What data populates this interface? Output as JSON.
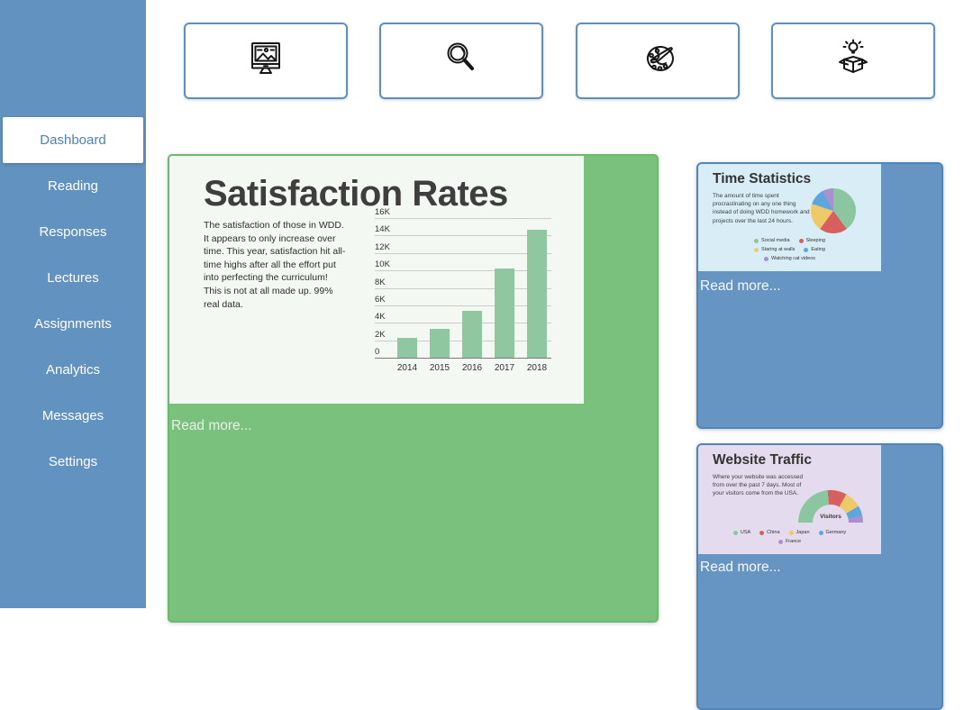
{
  "sidebar": {
    "items": [
      {
        "label": "Dashboard",
        "active": true
      },
      {
        "label": "Reading",
        "active": false
      },
      {
        "label": "Responses",
        "active": false
      },
      {
        "label": "Lectures",
        "active": false
      },
      {
        "label": "Assignments",
        "active": false
      },
      {
        "label": "Analytics",
        "active": false
      },
      {
        "label": "Messages",
        "active": false
      },
      {
        "label": "Settings",
        "active": false
      }
    ]
  },
  "top_cards": [
    {
      "icon": "monitor-image-icon"
    },
    {
      "icon": "search-icon"
    },
    {
      "icon": "palette-brush-icon"
    },
    {
      "icon": "idea-box-icon"
    }
  ],
  "satisfaction_card": {
    "title": "Satisfaction Rates",
    "description": "The satisfaction of those in WDD. It appears to only increase over time. This year, satisfaction hit all-time highs after all the effort put into perfecting the curriculum! This is not at all made up. 99% real data.",
    "read_more": "Read more..."
  },
  "time_card": {
    "title": "Time Statistics",
    "description": "The amount of time spent procrastinating on any one thing instead of doing WDD homework and projects over the last 24 hours.",
    "read_more": "Read more..."
  },
  "traffic_card": {
    "title": "Website Traffic",
    "description": "Where your website was accessed from over the past 7 days. Most of your visitors come from the USA.",
    "center_label": "Visitors",
    "read_more": "Read more..."
  },
  "chart_data": [
    {
      "type": "bar",
      "title": "Satisfaction Rates",
      "categories": [
        "2014",
        "2015",
        "2016",
        "2017",
        "2018"
      ],
      "values": [
        2300,
        3300,
        5400,
        10200,
        14700
      ],
      "ylim": [
        0,
        16000
      ],
      "ytick_labels": [
        "0",
        "2K",
        "4K",
        "6K",
        "8K",
        "10K",
        "12K",
        "14K",
        "16K"
      ],
      "xlabel": "",
      "ylabel": "",
      "grid": true,
      "bar_color": "#8fc7a0"
    },
    {
      "type": "pie",
      "title": "Time Statistics",
      "labels": [
        "Social media",
        "Sleeping",
        "Staring at walls",
        "Eating",
        "Watching cat videos"
      ],
      "values": [
        40,
        20,
        20,
        12,
        8
      ],
      "colors": [
        "#8cc6a0",
        "#d85f5f",
        "#edc96a",
        "#5ba7de",
        "#a991cf"
      ],
      "legend_rows": [
        2,
        2,
        1
      ],
      "legend_position": "bottom"
    },
    {
      "type": "pie",
      "subtype": "half-donut",
      "title": "Website Traffic",
      "center_label": "Visitors",
      "labels": [
        "USA",
        "China",
        "Japan",
        "Germany",
        "France"
      ],
      "values": [
        47,
        19,
        17,
        10,
        7
      ],
      "colors": [
        "#8cc6a0",
        "#d85f5f",
        "#edc96a",
        "#5ba7de",
        "#a991cf"
      ],
      "legend_rows": [
        4,
        1
      ],
      "legend_position": "bottom"
    }
  ],
  "colors": {
    "sidebar_bg": "#6192c0",
    "active_item_text": "#4d82b5",
    "top_card_border": "#5b8fc6",
    "green_card_bg": "#7ac17d",
    "green_panel_bg": "#f3f8f2",
    "blue_card_bg": "#6695c3",
    "time_panel_bg": "#d9edf7",
    "traffic_panel_bg": "#e4dcee",
    "bar_color": "#8fc7a0"
  }
}
